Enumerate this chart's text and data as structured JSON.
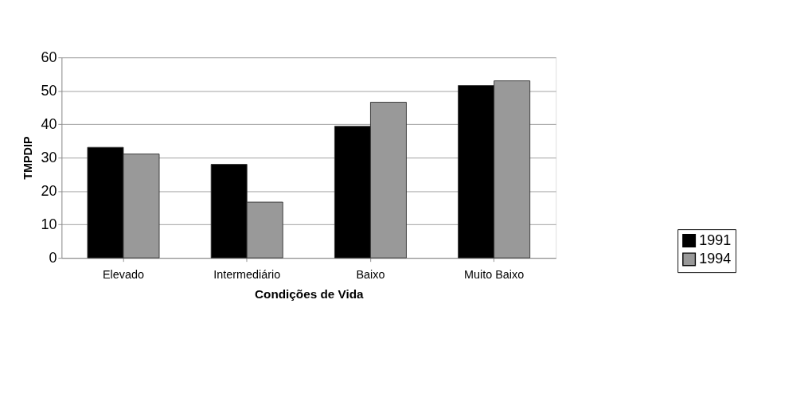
{
  "chart_data": {
    "type": "bar",
    "xlabel": "Condições de Vida",
    "ylabel": "TMPDIP",
    "categories": [
      "Elevado",
      "Intermediário",
      "Baixo",
      "Muito Baixo"
    ],
    "series": [
      {
        "name": "1991",
        "color": "#000000",
        "values": [
          33.1,
          28.0,
          39.4,
          51.6
        ]
      },
      {
        "name": "1994",
        "color": "#999999",
        "values": [
          31.1,
          16.7,
          46.6,
          53.0
        ]
      }
    ],
    "ylim": [
      0,
      60
    ],
    "yticks": [
      0,
      10,
      20,
      30,
      40,
      50,
      60
    ],
    "grid": "y",
    "legend": "bottom right"
  }
}
